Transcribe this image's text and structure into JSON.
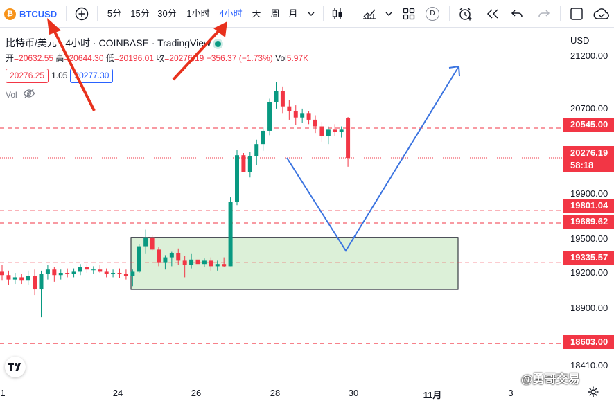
{
  "toolbar": {
    "symbol_badge": "₿",
    "symbol": "BTCUSD",
    "timeframes": [
      "5分",
      "15分",
      "30分",
      "1小时",
      "4小时",
      "天",
      "周",
      "月"
    ],
    "active_timeframe": "4小时",
    "data_window_badge": "D"
  },
  "legend": {
    "title": "比特币/美元 · 4小时 · COINBASE · TradingView",
    "open_label": "开",
    "open": "=20632.55",
    "high_label": "高",
    "high": "=20644.30",
    "low_label": "低",
    "low": "=20196.01",
    "close_label": "收",
    "close": "=20276.19",
    "change": "−356.37 (−1.73%)",
    "volume_label": "Vol",
    "volume": "5.97K",
    "bid": "20276.25",
    "spread": "1.05",
    "ask": "20277.30",
    "vol_indicator": "Vol"
  },
  "price_axis": {
    "currency": "USD",
    "labels": [
      "21200.00",
      "20700.00",
      "19900.00",
      "19500.00",
      "19200.00",
      "18900.00",
      "18410.00"
    ],
    "tags": [
      "20545.00",
      "19801.04",
      "19689.62",
      "19335.57",
      "18603.00"
    ],
    "current_price": "20276.19",
    "countdown": "58:18"
  },
  "time_axis": {
    "labels": [
      "1",
      "24",
      "26",
      "28",
      "30",
      "11月",
      "3"
    ]
  },
  "watermark": "@勇哥交易",
  "colors": {
    "up": "#089981",
    "down": "#f23645",
    "accent": "#2962ff",
    "level_line": "#f23645",
    "zone_fill": "#dcf0d8",
    "projection": "#3b74e0",
    "annotation_arrow": "#e8311d"
  },
  "chart_data": {
    "type": "candlestick",
    "timeframe": "4h",
    "x": [
      "24",
      "26",
      "28",
      "30",
      "11月",
      "3"
    ],
    "candles": [
      [
        19250,
        19310,
        19170,
        19220
      ],
      [
        19220,
        19260,
        19130,
        19180
      ],
      [
        19180,
        19240,
        19140,
        19200
      ],
      [
        19200,
        19230,
        19140,
        19170
      ],
      [
        19170,
        19260,
        19130,
        19210
      ],
      [
        19210,
        19270,
        19040,
        19090
      ],
      [
        19090,
        19260,
        18840,
        19230
      ],
      [
        19230,
        19310,
        19180,
        19270
      ],
      [
        19270,
        19290,
        19160,
        19220
      ],
      [
        19220,
        19270,
        19180,
        19240
      ],
      [
        19240,
        19280,
        19200,
        19230
      ],
      [
        19230,
        19280,
        19200,
        19250
      ],
      [
        19250,
        19320,
        19220,
        19290
      ],
      [
        19290,
        19320,
        19240,
        19270
      ],
      [
        19270,
        19300,
        19230,
        19270
      ],
      [
        19270,
        19310,
        19240,
        19250
      ],
      [
        19250,
        19280,
        19200,
        19230
      ],
      [
        19230,
        19270,
        19200,
        19240
      ],
      [
        19240,
        19280,
        19190,
        19230
      ],
      [
        19230,
        19270,
        19180,
        19210
      ],
      [
        19210,
        19270,
        19120,
        19250
      ],
      [
        19250,
        19500,
        19240,
        19480
      ],
      [
        19480,
        19630,
        19410,
        19560
      ],
      [
        19560,
        19580,
        19440,
        19450
      ],
      [
        19450,
        19470,
        19300,
        19330
      ],
      [
        19330,
        19400,
        19270,
        19380
      ],
      [
        19380,
        19430,
        19300,
        19420
      ],
      [
        19420,
        19460,
        19310,
        19350
      ],
      [
        19350,
        19390,
        19200,
        19310
      ],
      [
        19310,
        19410,
        19280,
        19360
      ],
      [
        19360,
        19380,
        19300,
        19320
      ],
      [
        19320,
        19370,
        19290,
        19350
      ],
      [
        19350,
        19380,
        19260,
        19300
      ],
      [
        19300,
        19350,
        19260,
        19320
      ],
      [
        19320,
        19380,
        19290,
        19300
      ],
      [
        19300,
        19920,
        19300,
        19880
      ],
      [
        19880,
        20350,
        19850,
        20300
      ],
      [
        20300,
        20320,
        20150,
        20150
      ],
      [
        20150,
        20330,
        20100,
        20290
      ],
      [
        20290,
        20440,
        20210,
        20400
      ],
      [
        20400,
        20550,
        20340,
        20520
      ],
      [
        20520,
        20810,
        20480,
        20780
      ],
      [
        20780,
        20960,
        20720,
        20880
      ],
      [
        20880,
        20920,
        20680,
        20740
      ],
      [
        20740,
        20800,
        20620,
        20700
      ],
      [
        20700,
        20750,
        20570,
        20640
      ],
      [
        20640,
        20720,
        20590,
        20680
      ],
      [
        20680,
        20700,
        20580,
        20620
      ],
      [
        20620,
        20660,
        20500,
        20560
      ],
      [
        20560,
        20600,
        20420,
        20470
      ],
      [
        20470,
        20560,
        20400,
        20530
      ],
      [
        20530,
        20580,
        20470,
        20510
      ],
      [
        20510,
        20560,
        20460,
        20530
      ],
      [
        20632.55,
        20644.3,
        20196.01,
        20276.19
      ]
    ],
    "horizontal_levels": [
      20545.0,
      19801.04,
      19689.62,
      19335.57,
      18603.0
    ],
    "current_price_level": 20276.19,
    "zone": {
      "top": 19560,
      "bottom": 19090,
      "x_from": "24",
      "x_to": "30"
    },
    "projection_path": [
      [
        20276,
        "28"
      ],
      [
        19440,
        "30"
      ],
      [
        21100,
        "11月"
      ]
    ],
    "ylim": [
      18300,
      21300
    ]
  }
}
